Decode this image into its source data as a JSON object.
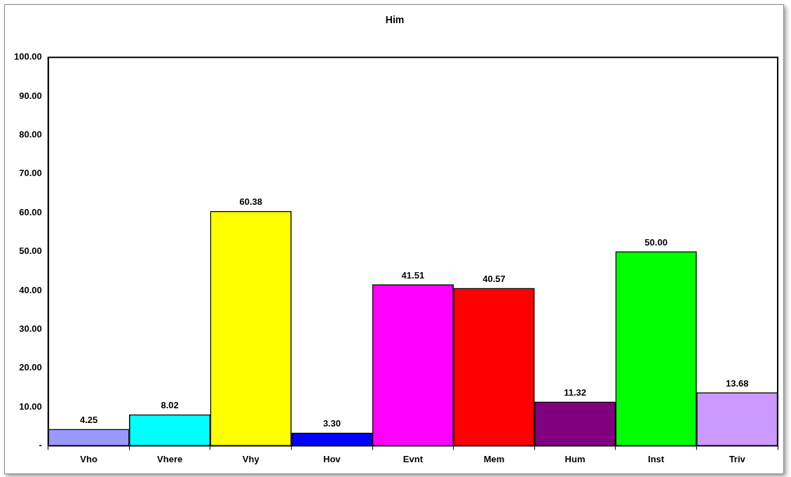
{
  "chart_data": {
    "type": "bar",
    "title": "Him",
    "categories": [
      "Vho",
      "Vhere",
      "Vhy",
      "Hov",
      "Evnt",
      "Mem",
      "Hum",
      "Inst",
      "Triv"
    ],
    "values": [
      4.25,
      8.02,
      60.38,
      3.3,
      41.51,
      40.57,
      11.32,
      50.0,
      13.68
    ],
    "value_labels": [
      "4.25",
      "8.02",
      "60.38",
      "3.30",
      "41.51",
      "40.57",
      "11.32",
      "50.00",
      "13.68"
    ],
    "colors": [
      "#9999ff",
      "#00ffff",
      "#ffff00",
      "#0000ff",
      "#ff00ff",
      "#ff0000",
      "#800080",
      "#00ff00",
      "#cc99ff"
    ],
    "ylim": [
      0,
      100
    ],
    "yticks": [
      {
        "value": 0,
        "label": "-"
      },
      {
        "value": 10,
        "label": "10.00"
      },
      {
        "value": 20,
        "label": "20.00"
      },
      {
        "value": 30,
        "label": "30.00"
      },
      {
        "value": 40,
        "label": "40.00"
      },
      {
        "value": 50,
        "label": "50.00"
      },
      {
        "value": 60,
        "label": "60.00"
      },
      {
        "value": 70,
        "label": "70.00"
      },
      {
        "value": 80,
        "label": "80.00"
      },
      {
        "value": 90,
        "label": "90.00"
      },
      {
        "value": 100,
        "label": "100.00"
      }
    ],
    "grid": false,
    "legend": false
  }
}
